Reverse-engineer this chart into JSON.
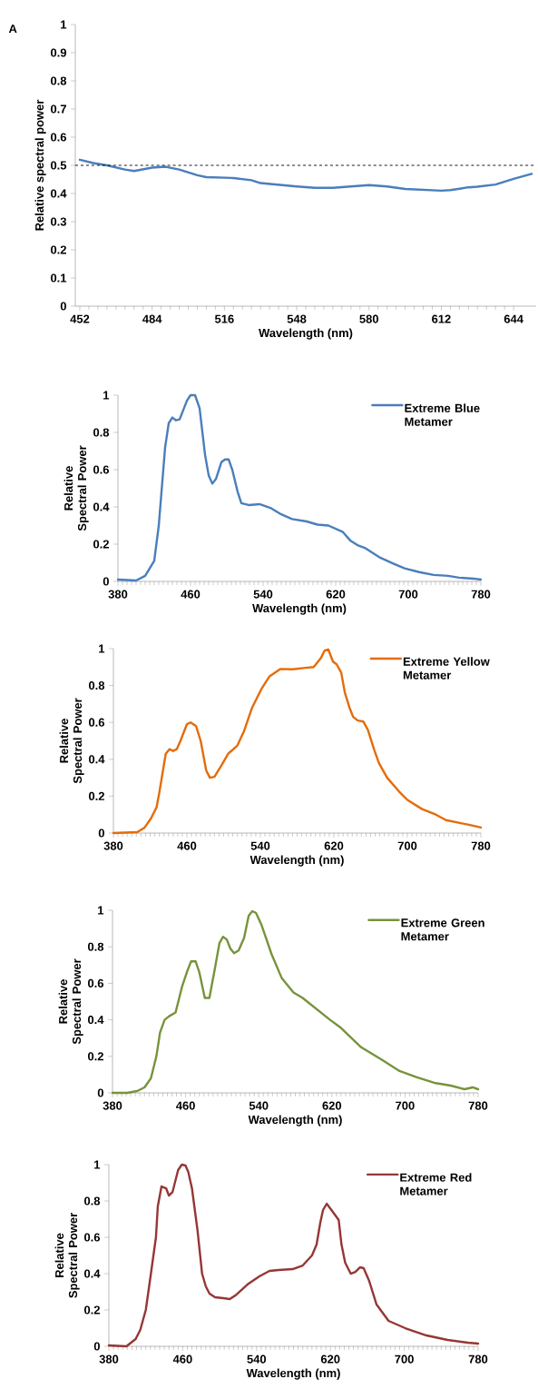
{
  "chart_data": [
    {
      "type": "line",
      "annotations": [
        "A"
      ],
      "xlabel": "Wavelength (nm)",
      "ylabel": "Relative spectral power",
      "x": [
        452,
        458,
        464,
        472,
        476,
        484,
        490,
        496,
        504,
        508,
        520,
        528,
        532,
        548,
        556,
        564,
        580,
        588,
        596,
        604,
        612,
        616,
        624,
        628,
        636,
        644,
        652
      ],
      "series": [
        {
          "color": "#4a7ebb",
          "values": [
            0.52,
            0.508,
            0.5,
            0.485,
            0.48,
            0.492,
            0.495,
            0.485,
            0.465,
            0.458,
            0.455,
            0.447,
            0.437,
            0.425,
            0.42,
            0.42,
            0.43,
            0.425,
            0.416,
            0.413,
            0.41,
            0.412,
            0.422,
            0.424,
            0.432,
            0.452,
            0.47
          ]
        }
      ],
      "xlim": [
        450,
        654
      ],
      "xticks": [
        452,
        484,
        516,
        548,
        580,
        612,
        644
      ],
      "ylim": [
        0,
        1
      ],
      "yticks": [
        0,
        0.1,
        0.2,
        0.3,
        0.4,
        0.5,
        0.6,
        0.7,
        0.8,
        0.9,
        1
      ],
      "ref_lines": [
        {
          "axis": "y",
          "value": 0.5,
          "color": "#000000",
          "line_style": "dashed"
        }
      ]
    },
    {
      "type": "line",
      "xlabel": "Wavelength (nm)",
      "ylabel": "Relative Spectral Power",
      "legend": "top right",
      "x": [
        380,
        400,
        410,
        420,
        425,
        432,
        436,
        440,
        444,
        448,
        456,
        460,
        465,
        470,
        476,
        480,
        484,
        488,
        494,
        498,
        502,
        506,
        512,
        516,
        524,
        536,
        548,
        560,
        572,
        588,
        600,
        612,
        628,
        636,
        644,
        652,
        668,
        684,
        696,
        712,
        728,
        744,
        756,
        772,
        780
      ],
      "series": [
        {
          "name": "Extreme Blue Metamer",
          "color": "#4a7ebb",
          "values": [
            0.01,
            0.005,
            0.03,
            0.11,
            0.3,
            0.72,
            0.85,
            0.88,
            0.865,
            0.87,
            0.97,
            1.0,
            1.0,
            0.93,
            0.68,
            0.57,
            0.525,
            0.55,
            0.64,
            0.655,
            0.655,
            0.6,
            0.48,
            0.42,
            0.41,
            0.415,
            0.395,
            0.36,
            0.335,
            0.322,
            0.305,
            0.3,
            0.265,
            0.22,
            0.195,
            0.18,
            0.13,
            0.095,
            0.07,
            0.05,
            0.035,
            0.03,
            0.02,
            0.015,
            0.01
          ]
        }
      ],
      "xlim": [
        380,
        780
      ],
      "xticks": [
        380,
        460,
        540,
        620,
        700,
        780
      ],
      "ylim": [
        0,
        1
      ],
      "yticks": [
        0,
        0.2,
        0.4,
        0.6,
        0.8,
        1
      ]
    },
    {
      "type": "line",
      "xlabel": "Wavelength (nm)",
      "ylabel": "Relative Spectral Power",
      "legend": "top right",
      "x": [
        380,
        406,
        414,
        421,
        427,
        430,
        434,
        437,
        441,
        445,
        449,
        453,
        460,
        464,
        470,
        475,
        481,
        485,
        490,
        498,
        505,
        515,
        522,
        531,
        541,
        550,
        562,
        575,
        587,
        598,
        606,
        610,
        614,
        619,
        623,
        628,
        632,
        637,
        641,
        646,
        652,
        657,
        664,
        669,
        678,
        691,
        700,
        716,
        731,
        742,
        757,
        767,
        780
      ],
      "series": [
        {
          "name": "Extreme Yellow Metamer",
          "color": "#e46c0a",
          "values": [
            0.0,
            0.005,
            0.03,
            0.08,
            0.14,
            0.22,
            0.34,
            0.43,
            0.455,
            0.445,
            0.455,
            0.5,
            0.59,
            0.6,
            0.58,
            0.5,
            0.34,
            0.3,
            0.305,
            0.37,
            0.43,
            0.475,
            0.55,
            0.68,
            0.78,
            0.85,
            0.89,
            0.888,
            0.895,
            0.9,
            0.95,
            0.99,
            0.995,
            0.93,
            0.915,
            0.87,
            0.76,
            0.68,
            0.63,
            0.61,
            0.605,
            0.56,
            0.45,
            0.38,
            0.3,
            0.225,
            0.18,
            0.13,
            0.1,
            0.07,
            0.055,
            0.045,
            0.03
          ]
        }
      ],
      "xlim": [
        380,
        780
      ],
      "xticks": [
        380,
        460,
        540,
        620,
        700,
        780
      ],
      "ylim": [
        0,
        1
      ],
      "yticks": [
        0,
        0.2,
        0.4,
        0.6,
        0.8,
        1
      ]
    },
    {
      "type": "line",
      "xlabel": "Wavelength (nm)",
      "ylabel": "Relative Spectral Power",
      "legend": "top right",
      "x": [
        380,
        396,
        407,
        415,
        422,
        428,
        432,
        437,
        442,
        449,
        456,
        462,
        466,
        471,
        475,
        481,
        486,
        492,
        497,
        501,
        505,
        509,
        513,
        518,
        524,
        529,
        533,
        537,
        543,
        554,
        565,
        578,
        588,
        603,
        618,
        629,
        652,
        675,
        694,
        713,
        732,
        750,
        765,
        774,
        780
      ],
      "series": [
        {
          "name": "Extreme Green Metamer",
          "color": "#77933c",
          "values": [
            0.0,
            0.0,
            0.01,
            0.03,
            0.08,
            0.2,
            0.33,
            0.4,
            0.42,
            0.44,
            0.58,
            0.67,
            0.72,
            0.72,
            0.66,
            0.52,
            0.52,
            0.68,
            0.82,
            0.855,
            0.84,
            0.79,
            0.765,
            0.78,
            0.85,
            0.97,
            0.995,
            0.985,
            0.92,
            0.76,
            0.63,
            0.55,
            0.52,
            0.46,
            0.4,
            0.36,
            0.25,
            0.18,
            0.12,
            0.085,
            0.055,
            0.04,
            0.02,
            0.03,
            0.02
          ]
        }
      ],
      "xlim": [
        380,
        780
      ],
      "xticks": [
        380,
        460,
        540,
        620,
        700,
        780
      ],
      "ylim": [
        0,
        1
      ],
      "yticks": [
        0,
        0.2,
        0.4,
        0.6,
        0.8,
        1
      ]
    },
    {
      "type": "line",
      "xlabel": "Wavelength (nm)",
      "ylabel": "Relative Spectral Power",
      "legend": "top right",
      "x": [
        380,
        399,
        409,
        414,
        420,
        425,
        431,
        433,
        437,
        442,
        445,
        449,
        455,
        459,
        463,
        466,
        470,
        476,
        481,
        485,
        489,
        495,
        504,
        511,
        517,
        530,
        543,
        554,
        564,
        579,
        590,
        600,
        605,
        609,
        612,
        616,
        624,
        629,
        632,
        636,
        642,
        647,
        652,
        656,
        662,
        670,
        683,
        701,
        724,
        747,
        769,
        780
      ],
      "series": [
        {
          "name": "Extreme Red Metamer",
          "color": "#953735",
          "values": [
            0.005,
            0.0,
            0.04,
            0.09,
            0.2,
            0.38,
            0.6,
            0.77,
            0.88,
            0.87,
            0.83,
            0.85,
            0.97,
            1.0,
            0.995,
            0.96,
            0.87,
            0.64,
            0.4,
            0.33,
            0.29,
            0.27,
            0.265,
            0.26,
            0.28,
            0.34,
            0.385,
            0.415,
            0.42,
            0.425,
            0.445,
            0.5,
            0.56,
            0.68,
            0.75,
            0.785,
            0.73,
            0.695,
            0.56,
            0.46,
            0.4,
            0.41,
            0.435,
            0.43,
            0.36,
            0.23,
            0.14,
            0.1,
            0.06,
            0.035,
            0.02,
            0.015
          ]
        }
      ],
      "xlim": [
        380,
        780
      ],
      "xticks": [
        380,
        460,
        540,
        620,
        700,
        780
      ],
      "ylim": [
        0,
        1
      ],
      "yticks": [
        0,
        0.2,
        0.4,
        0.6,
        0.8,
        1
      ]
    }
  ]
}
